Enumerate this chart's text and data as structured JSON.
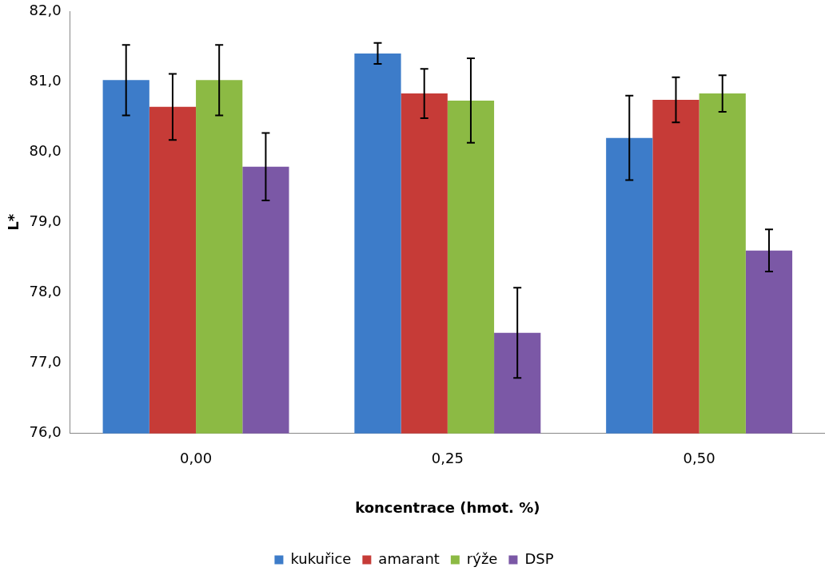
{
  "chart_data": {
    "type": "bar",
    "xlabel": "koncentrace (hmot. %)",
    "ylabel": "L*",
    "categories": [
      "0,00",
      "0,25",
      "0,50"
    ],
    "series": [
      {
        "name": "kukuřice",
        "color": "#3d7cc9",
        "values": [
          81.02,
          81.4,
          80.2
        ],
        "errors": [
          0.5,
          0.15,
          0.6
        ]
      },
      {
        "name": "amarant",
        "color": "#c63b37",
        "values": [
          80.64,
          80.83,
          80.74
        ],
        "errors": [
          0.47,
          0.35,
          0.32
        ]
      },
      {
        "name": "rýže",
        "color": "#8cba44",
        "values": [
          81.02,
          80.73,
          80.83
        ],
        "errors": [
          0.5,
          0.6,
          0.26
        ]
      },
      {
        "name": "DSP",
        "color": "#7b58a6",
        "values": [
          79.79,
          77.43,
          78.6
        ],
        "errors": [
          0.48,
          0.64,
          0.3
        ]
      }
    ],
    "ylim": [
      76,
      82
    ],
    "yticks": [
      {
        "value": 76,
        "label": "76,0"
      },
      {
        "value": 77,
        "label": "77,0"
      },
      {
        "value": 78,
        "label": "78,0"
      },
      {
        "value": 79,
        "label": "79,0"
      },
      {
        "value": 80,
        "label": "80,0"
      },
      {
        "value": 81,
        "label": "81,0"
      },
      {
        "value": 82,
        "label": "82,0"
      }
    ],
    "grid": false,
    "legend": "bottom"
  }
}
